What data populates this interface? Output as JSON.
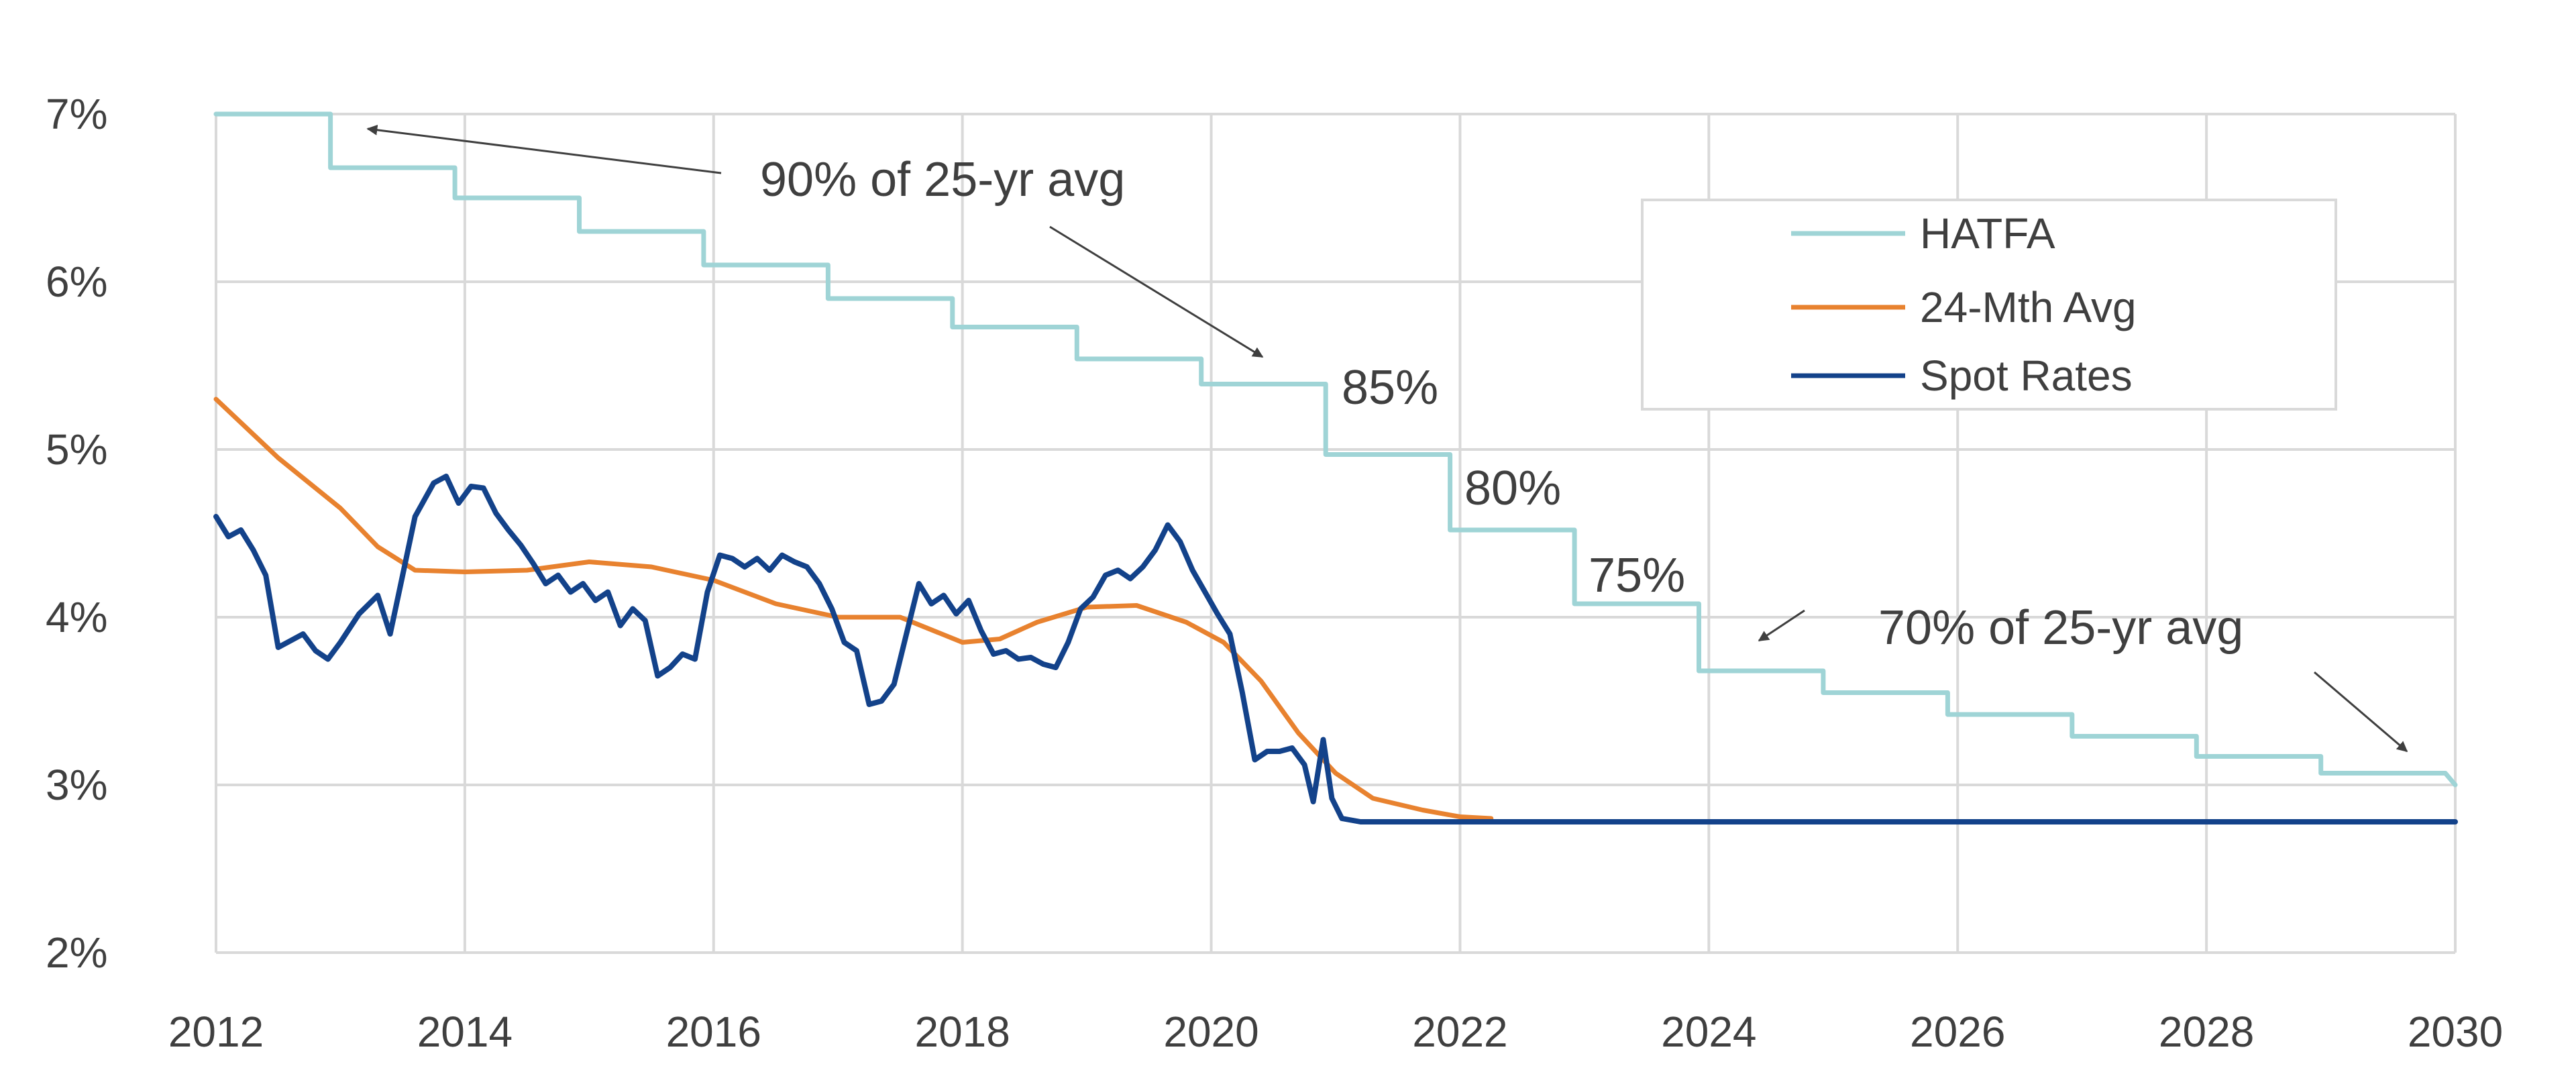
{
  "chart_data": {
    "type": "line",
    "title": "",
    "xlabel": "",
    "ylabel": "",
    "xlim": [
      2012,
      2030
    ],
    "ylim": [
      2,
      7
    ],
    "grid": true,
    "x_ticks": [
      "2012",
      "2014",
      "2016",
      "2018",
      "2020",
      "2022",
      "2024",
      "2026",
      "2028",
      "2030"
    ],
    "y_ticks": [
      "2%",
      "3%",
      "4%",
      "5%",
      "6%",
      "7%"
    ],
    "legend_position": "top-right",
    "colors": {
      "HATFA": "#9fd4d6",
      "24-Mth Avg": "#e8822f",
      "Spot Rates": "#13428a",
      "grid": "#d9d9d9",
      "text": "#3f3f3f"
    },
    "series": [
      {
        "name": "HATFA",
        "points": [
          [
            2012.0,
            7.0
          ],
          [
            2012.92,
            7.0
          ],
          [
            2012.92,
            6.68
          ],
          [
            2013.92,
            6.68
          ],
          [
            2013.92,
            6.5
          ],
          [
            2014.92,
            6.5
          ],
          [
            2014.92,
            6.3
          ],
          [
            2015.92,
            6.3
          ],
          [
            2015.92,
            6.1
          ],
          [
            2016.92,
            6.1
          ],
          [
            2016.92,
            5.9
          ],
          [
            2017.92,
            5.9
          ],
          [
            2017.92,
            5.73
          ],
          [
            2018.92,
            5.73
          ],
          [
            2018.92,
            5.54
          ],
          [
            2019.92,
            5.54
          ],
          [
            2019.92,
            5.39
          ],
          [
            2020.92,
            5.39
          ],
          [
            2020.92,
            4.97
          ],
          [
            2021.92,
            4.97
          ],
          [
            2021.92,
            4.52
          ],
          [
            2022.92,
            4.52
          ],
          [
            2022.92,
            4.08
          ],
          [
            2023.92,
            4.08
          ],
          [
            2023.92,
            3.68
          ],
          [
            2024.92,
            3.68
          ],
          [
            2024.92,
            3.55
          ],
          [
            2025.92,
            3.55
          ],
          [
            2025.92,
            3.42
          ],
          [
            2026.92,
            3.42
          ],
          [
            2026.92,
            3.29
          ],
          [
            2027.92,
            3.29
          ],
          [
            2027.92,
            3.17
          ],
          [
            2028.92,
            3.17
          ],
          [
            2028.92,
            3.07
          ],
          [
            2029.92,
            3.07
          ],
          [
            2030.0,
            3.0
          ]
        ]
      },
      {
        "name": "24-Mth Avg",
        "points": [
          [
            2012.0,
            5.3
          ],
          [
            2012.5,
            4.95
          ],
          [
            2013.0,
            4.65
          ],
          [
            2013.3,
            4.42
          ],
          [
            2013.6,
            4.28
          ],
          [
            2014.0,
            4.27
          ],
          [
            2014.5,
            4.28
          ],
          [
            2015.0,
            4.33
          ],
          [
            2015.5,
            4.3
          ],
          [
            2016.0,
            4.22
          ],
          [
            2016.5,
            4.08
          ],
          [
            2017.0,
            4.0
          ],
          [
            2017.5,
            4.0
          ],
          [
            2018.0,
            3.85
          ],
          [
            2018.3,
            3.87
          ],
          [
            2018.6,
            3.97
          ],
          [
            2019.0,
            4.06
          ],
          [
            2019.4,
            4.07
          ],
          [
            2019.8,
            3.97
          ],
          [
            2020.1,
            3.85
          ],
          [
            2020.4,
            3.62
          ],
          [
            2020.7,
            3.31
          ],
          [
            2021.0,
            3.07
          ],
          [
            2021.3,
            2.92
          ],
          [
            2021.7,
            2.85
          ],
          [
            2022.0,
            2.81
          ],
          [
            2022.25,
            2.8
          ]
        ]
      },
      {
        "name": "Spot Rates",
        "points": [
          [
            2012.0,
            4.6
          ],
          [
            2012.1,
            4.48
          ],
          [
            2012.2,
            4.52
          ],
          [
            2012.3,
            4.4
          ],
          [
            2012.4,
            4.25
          ],
          [
            2012.5,
            3.82
          ],
          [
            2012.6,
            3.86
          ],
          [
            2012.7,
            3.9
          ],
          [
            2012.8,
            3.8
          ],
          [
            2012.9,
            3.75
          ],
          [
            2013.0,
            3.85
          ],
          [
            2013.15,
            4.02
          ],
          [
            2013.3,
            4.13
          ],
          [
            2013.4,
            3.9
          ],
          [
            2013.5,
            4.25
          ],
          [
            2013.6,
            4.6
          ],
          [
            2013.75,
            4.8
          ],
          [
            2013.85,
            4.84
          ],
          [
            2013.95,
            4.68
          ],
          [
            2014.05,
            4.78
          ],
          [
            2014.15,
            4.77
          ],
          [
            2014.25,
            4.62
          ],
          [
            2014.35,
            4.52
          ],
          [
            2014.45,
            4.43
          ],
          [
            2014.55,
            4.32
          ],
          [
            2014.65,
            4.2
          ],
          [
            2014.75,
            4.25
          ],
          [
            2014.85,
            4.15
          ],
          [
            2014.95,
            4.2
          ],
          [
            2015.05,
            4.1
          ],
          [
            2015.15,
            4.15
          ],
          [
            2015.25,
            3.95
          ],
          [
            2015.35,
            4.05
          ],
          [
            2015.45,
            3.98
          ],
          [
            2015.55,
            3.65
          ],
          [
            2015.65,
            3.7
          ],
          [
            2015.75,
            3.78
          ],
          [
            2015.85,
            3.75
          ],
          [
            2015.95,
            4.15
          ],
          [
            2016.05,
            4.37
          ],
          [
            2016.15,
            4.35
          ],
          [
            2016.25,
            4.3
          ],
          [
            2016.35,
            4.35
          ],
          [
            2016.45,
            4.28
          ],
          [
            2016.55,
            4.37
          ],
          [
            2016.65,
            4.33
          ],
          [
            2016.75,
            4.3
          ],
          [
            2016.85,
            4.2
          ],
          [
            2016.95,
            4.05
          ],
          [
            2017.05,
            3.85
          ],
          [
            2017.15,
            3.8
          ],
          [
            2017.25,
            3.48
          ],
          [
            2017.35,
            3.5
          ],
          [
            2017.45,
            3.6
          ],
          [
            2017.55,
            3.9
          ],
          [
            2017.65,
            4.2
          ],
          [
            2017.75,
            4.08
          ],
          [
            2017.85,
            4.13
          ],
          [
            2017.95,
            4.02
          ],
          [
            2018.05,
            4.1
          ],
          [
            2018.15,
            3.92
          ],
          [
            2018.25,
            3.78
          ],
          [
            2018.35,
            3.8
          ],
          [
            2018.45,
            3.75
          ],
          [
            2018.55,
            3.76
          ],
          [
            2018.65,
            3.72
          ],
          [
            2018.75,
            3.7
          ],
          [
            2018.85,
            3.85
          ],
          [
            2018.95,
            4.05
          ],
          [
            2019.05,
            4.12
          ],
          [
            2019.15,
            4.25
          ],
          [
            2019.25,
            4.28
          ],
          [
            2019.35,
            4.23
          ],
          [
            2019.45,
            4.3
          ],
          [
            2019.55,
            4.4
          ],
          [
            2019.65,
            4.55
          ],
          [
            2019.75,
            4.45
          ],
          [
            2019.85,
            4.28
          ],
          [
            2019.95,
            4.15
          ],
          [
            2020.05,
            4.02
          ],
          [
            2020.15,
            3.9
          ],
          [
            2020.25,
            3.55
          ],
          [
            2020.35,
            3.15
          ],
          [
            2020.45,
            3.2
          ],
          [
            2020.55,
            3.2
          ],
          [
            2020.65,
            3.22
          ],
          [
            2020.75,
            3.12
          ],
          [
            2020.82,
            2.9
          ],
          [
            2020.9,
            3.27
          ],
          [
            2020.97,
            2.92
          ],
          [
            2021.05,
            2.8
          ],
          [
            2021.2,
            2.78
          ],
          [
            2030.0,
            2.78
          ]
        ]
      }
    ],
    "annotations": [
      {
        "text": "90% of 25-yr avg"
      },
      {
        "text": "85%"
      },
      {
        "text": "80%"
      },
      {
        "text": "75%"
      },
      {
        "text": "70% of 25-yr avg"
      }
    ]
  }
}
